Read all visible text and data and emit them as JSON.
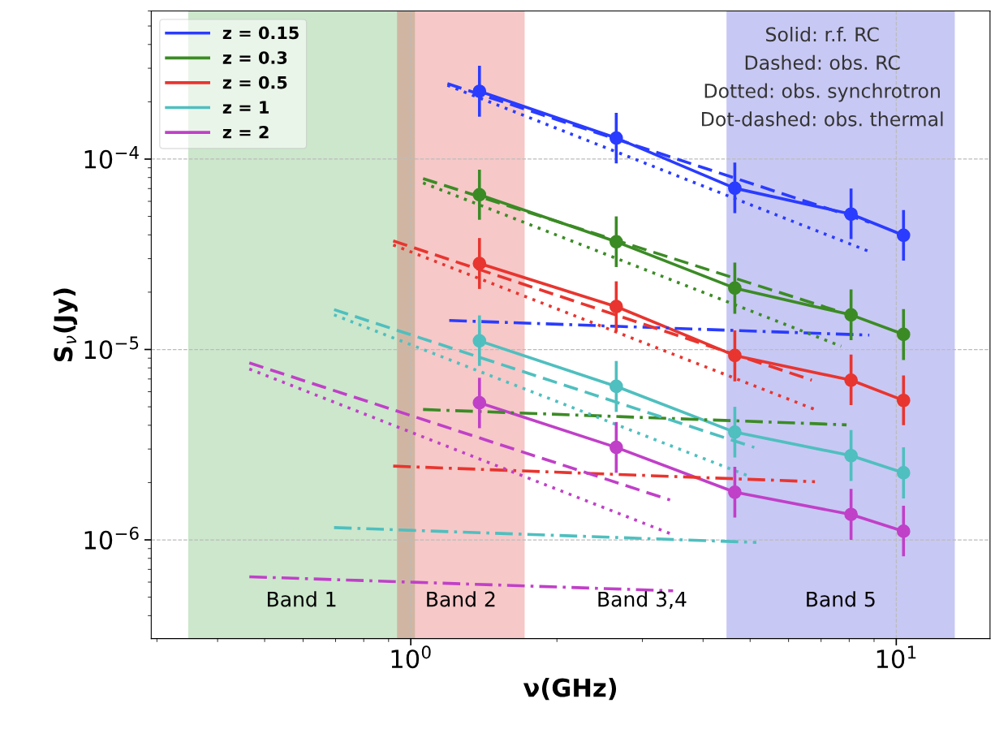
{
  "chart_data": {
    "type": "line",
    "xlabel": "ν(GHz)",
    "ylabel": "S$_{ν}$(Jy)",
    "log": "xy",
    "grid": true,
    "legend": "top left",
    "xlim": [
      0.292,
      15.6
    ],
    "ylim": [
      3.03e-07,
      0.0006
    ],
    "xticks": [
      {
        "value": 1,
        "label": "10$^{0}$"
      },
      {
        "value": 10,
        "label": "10$^{1}$"
      }
    ],
    "yticks": [
      {
        "value": 1e-06,
        "label": "10$^{−6}$"
      },
      {
        "value": 1e-05,
        "label": "10$^{−5}$"
      },
      {
        "value": 0.0001,
        "label": "10$^{−4}$"
      }
    ],
    "x": [
      1.385,
      2.65,
      4.65,
      8.07,
      10.35
    ],
    "series": [
      {
        "name": "z = 0.15",
        "color": "#2a3cff",
        "marker": "circle",
        "line_style": "solid",
        "values": [
          0.000227,
          0.000129,
          7.03e-05,
          5.14e-05,
          3.98e-05
        ],
        "errors": [
          [
            0.000167,
            0.000309
          ],
          [
            9.5e-05,
            0.000175
          ],
          [
            5.2e-05,
            9.6e-05
          ],
          [
            3.8e-05,
            7e-05
          ],
          [
            2.93e-05,
            5.4e-05
          ]
        ]
      },
      {
        "name": "z = 0.3",
        "color": "#3b8b25",
        "marker": "circle",
        "line_style": "solid",
        "values": [
          6.5e-05,
          3.68e-05,
          2.1e-05,
          1.52e-05,
          1.2e-05
        ],
        "errors": [
          [
            4.8e-05,
            8.8e-05
          ],
          [
            2.71e-05,
            5e-05
          ],
          [
            1.54e-05,
            2.86e-05
          ],
          [
            1.12e-05,
            2.07e-05
          ],
          [
            8.8e-06,
            1.63e-05
          ]
        ]
      },
      {
        "name": "z = 0.5",
        "color": "#e8352f",
        "marker": "circle",
        "line_style": "solid",
        "values": [
          2.83e-05,
          1.68e-05,
          9.3e-06,
          6.9e-06,
          5.4e-06
        ],
        "errors": [
          [
            2.08e-05,
            3.85e-05
          ],
          [
            1.24e-05,
            2.28e-05
          ],
          [
            6.8e-06,
            1.26e-05
          ],
          [
            5.1e-06,
            9.4e-06
          ],
          [
            4e-06,
            7.3e-06
          ]
        ]
      },
      {
        "name": "z = 1",
        "color": "#4fbfbf",
        "marker": "circle",
        "line_style": "solid",
        "values": [
          1.11e-05,
          6.4e-06,
          3.68e-06,
          2.77e-06,
          2.25e-06
        ],
        "errors": [
          [
            8.2e-06,
            1.51e-05
          ],
          [
            4.7e-06,
            8.7e-06
          ],
          [
            2.71e-06,
            5e-06
          ],
          [
            2.04e-06,
            3.77e-06
          ],
          [
            1.65e-06,
            3.06e-06
          ]
        ]
      },
      {
        "name": "z = 2",
        "color": "#c040c8",
        "marker": "circle",
        "line_style": "solid",
        "values": [
          5.25e-06,
          3.06e-06,
          1.78e-06,
          1.36e-06,
          1.11e-06
        ],
        "errors": [
          [
            3.86e-06,
            7.1e-06
          ],
          [
            2.25e-06,
            4.16e-06
          ],
          [
            1.31e-06,
            2.42e-06
          ],
          [
            1e-06,
            1.85e-06
          ],
          [
            8.2e-07,
            1.51e-06
          ]
        ]
      },
      {
        "color": "#2a3cff",
        "line_style": "dashed",
        "x": [
          1.19,
          8.8
        ],
        "values": [
          0.000249,
          4.66e-05
        ]
      },
      {
        "color": "#2a3cff",
        "line_style": "dotted",
        "x": [
          1.19,
          8.8
        ],
        "values": [
          0.000244,
          3.27e-05
        ]
      },
      {
        "color": "#2a3cff",
        "line_style": "dashdot",
        "x": [
          1.2,
          8.8
        ],
        "values": [
          1.42e-05,
          1.19e-05
        ]
      },
      {
        "color": "#3b8b25",
        "line_style": "dashed",
        "x": [
          1.06,
          7.7
        ],
        "values": [
          7.9e-05,
          1.57e-05
        ]
      },
      {
        "color": "#3b8b25",
        "line_style": "dotted",
        "x": [
          1.06,
          7.7
        ],
        "values": [
          7.5e-05,
          1.04e-05
        ]
      },
      {
        "color": "#3b8b25",
        "line_style": "dashdot",
        "x": [
          1.06,
          7.9
        ],
        "values": [
          4.84e-06,
          4.02e-06
        ]
      },
      {
        "color": "#e8352f",
        "line_style": "dashed",
        "x": [
          0.92,
          6.7
        ],
        "values": [
          3.72e-05,
          6.9e-06
        ]
      },
      {
        "color": "#e8352f",
        "line_style": "dotted",
        "x": [
          0.92,
          6.8
        ],
        "values": [
          3.54e-05,
          4.84e-06
        ]
      },
      {
        "color": "#e8352f",
        "line_style": "dashdot",
        "x": [
          0.92,
          6.8
        ],
        "values": [
          2.44e-06,
          2.02e-06
        ]
      },
      {
        "color": "#4fbfbf",
        "line_style": "dashed",
        "x": [
          0.695,
          5.1
        ],
        "values": [
          1.62e-05,
          3.06e-06
        ]
      },
      {
        "color": "#4fbfbf",
        "line_style": "dotted",
        "x": [
          0.695,
          5.0
        ],
        "values": [
          1.52e-05,
          2.15e-06
        ]
      },
      {
        "color": "#4fbfbf",
        "line_style": "dashdot",
        "x": [
          0.695,
          5.15
        ],
        "values": [
          1.16e-06,
          9.7e-07
        ]
      },
      {
        "color": "#c040c8",
        "line_style": "dashed",
        "x": [
          0.465,
          3.42
        ],
        "values": [
          8.5e-06,
          1.62e-06
        ]
      },
      {
        "color": "#c040c8",
        "line_style": "dotted",
        "x": [
          0.465,
          3.42
        ],
        "values": [
          7.9e-06,
          1.08e-06
        ]
      },
      {
        "color": "#c040c8",
        "line_style": "dashdot",
        "x": [
          0.465,
          3.47
        ],
        "values": [
          6.4e-07,
          5.4e-07
        ]
      }
    ],
    "bands": [
      {
        "axis": "x",
        "from": 0.348,
        "to": 1.02,
        "label": "Band 1",
        "color": "#339f33"
      },
      {
        "axis": "x",
        "from": 0.937,
        "to": 1.716,
        "label": "Band 2",
        "color": "#db2323"
      },
      {
        "axis": "x",
        "from": 4.47,
        "to": 13.2,
        "label": "Band 5",
        "color": "#2323d3"
      }
    ],
    "annotations": [
      "Solid: r.f. RC",
      "Dashed: obs. RC",
      "Dotted: obs. synchrotron",
      "Dot-dashed: obs. thermal",
      "Band 3,4"
    ]
  }
}
